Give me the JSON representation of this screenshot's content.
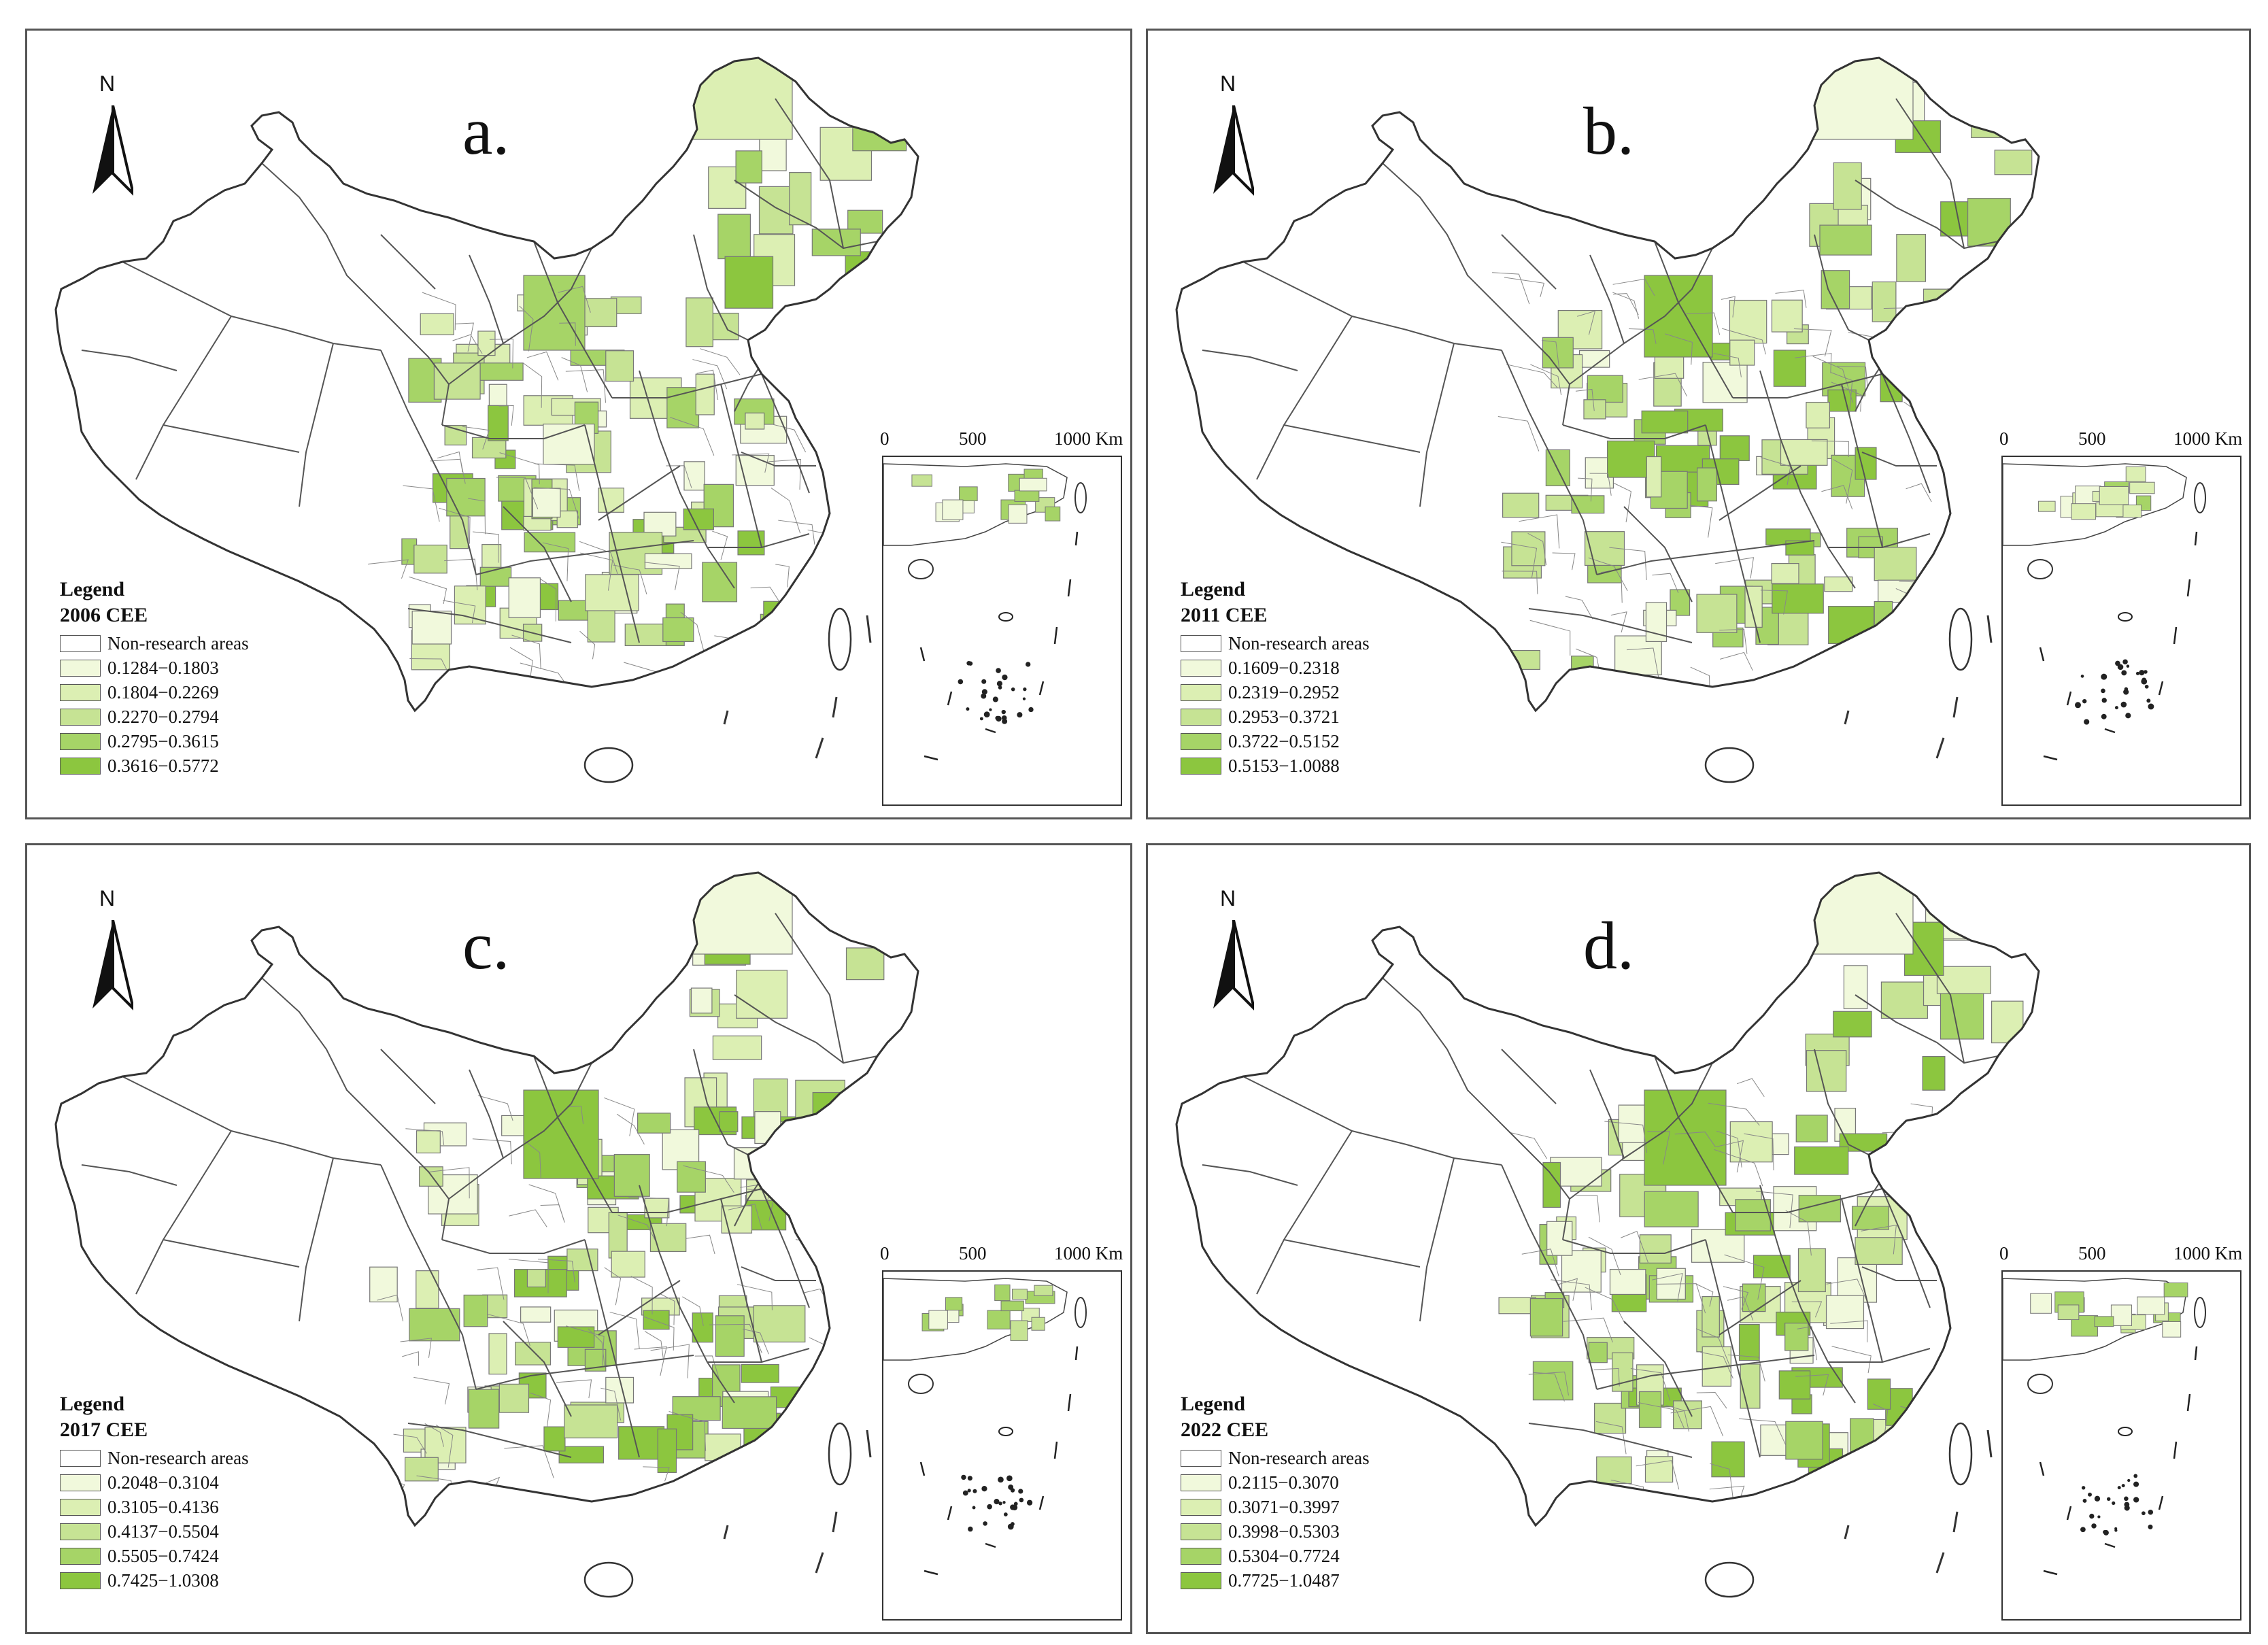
{
  "compass_label": "N",
  "legend_title": "Legend",
  "scale": {
    "ticks": [
      "0",
      "500",
      "1000 Km"
    ]
  },
  "colors": {
    "none": "#ffffff",
    "c1": "#f1f9dc",
    "c2": "#dcefb3",
    "c3": "#c6e394",
    "c4": "#a6d467",
    "c5": "#8cc63f",
    "border": "#555555"
  },
  "panels": [
    {
      "letter": "a.",
      "legend_subtitle": "2006  CEE",
      "classes": [
        "Non-research areas",
        "0.1284−0.1803",
        "0.1804−0.2269",
        "0.2270−0.2794",
        "0.2795−0.3615",
        "0.3616−0.5772"
      ]
    },
    {
      "letter": "b.",
      "legend_subtitle": "2011  CEE",
      "classes": [
        "Non-research areas",
        "0.1609−0.2318",
        "0.2319−0.2952",
        "0.2953−0.3721",
        "0.3722−0.5152",
        "0.5153−1.0088"
      ]
    },
    {
      "letter": "c.",
      "legend_subtitle": "2017  CEE",
      "classes": [
        "Non-research areas",
        "0.2048−0.3104",
        "0.3105−0.4136",
        "0.4137−0.5504",
        "0.5505−0.7424",
        "0.7425−1.0308"
      ]
    },
    {
      "letter": "d.",
      "legend_subtitle": "2022  CEE",
      "classes": [
        "Non-research areas",
        "0.2115−0.3070",
        "0.3071−0.3997",
        "0.3998−0.5303",
        "0.5304−0.7724",
        "0.7725−1.0487"
      ]
    }
  ]
}
